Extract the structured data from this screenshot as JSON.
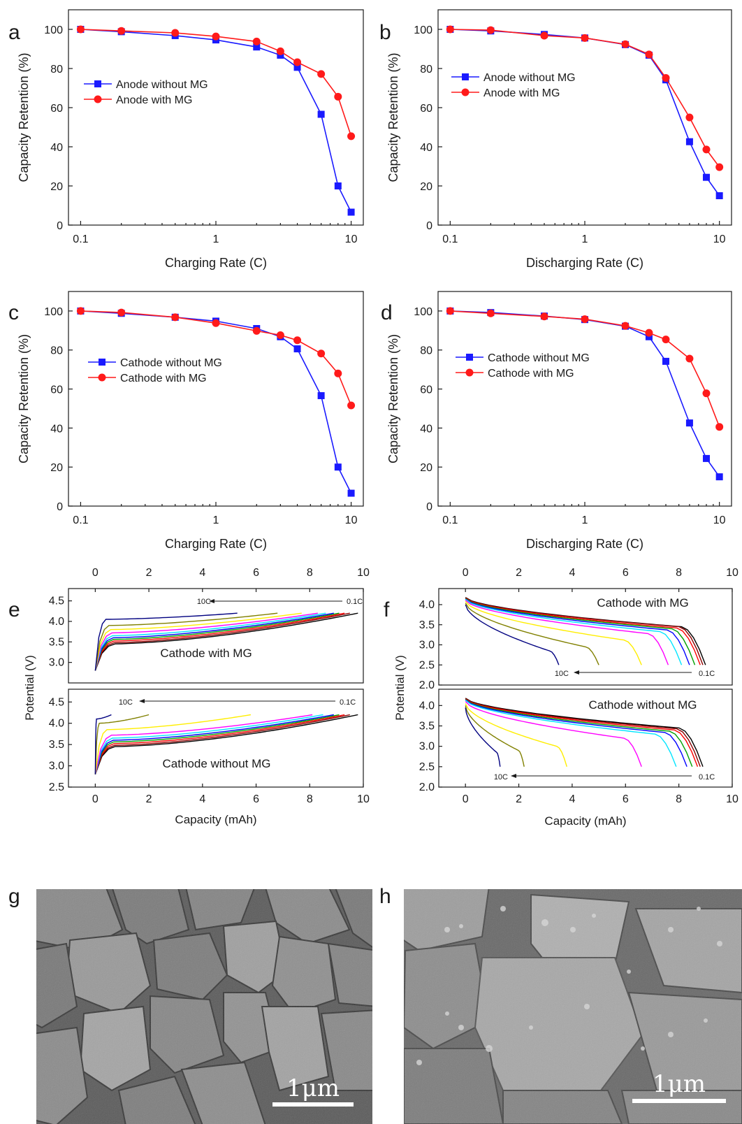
{
  "colors": {
    "blue": "#1a1aff",
    "red": "#ff1a1a",
    "curve_palette": [
      "#000000",
      "#8b0000",
      "#ff0000",
      "#00a000",
      "#0000ff",
      "#00e5ff",
      "#ff00ff",
      "#ffee00",
      "#808000",
      "#000080",
      "#800080"
    ]
  },
  "panel_letters": [
    "a",
    "b",
    "c",
    "d",
    "e",
    "f",
    "g",
    "h"
  ],
  "chart_data": [
    {
      "id": "a",
      "type": "line",
      "xlabel": "Charging Rate (C)",
      "ylabel": "Capacity Retention (%)",
      "xscale": "log",
      "xlim": [
        0.1,
        10
      ],
      "ylim": [
        0,
        110
      ],
      "xticks": [
        "0.1",
        "1",
        "10"
      ],
      "yticks": [
        0,
        20,
        40,
        60,
        80,
        100
      ],
      "legend": "upper-left",
      "x": [
        0.1,
        0.2,
        0.5,
        1,
        2,
        3,
        4,
        6,
        8,
        10
      ],
      "series": [
        {
          "name": "Anode without MG",
          "marker": "square",
          "color": "#1a1aff",
          "values": [
            100,
            98.8,
            96.8,
            94.6,
            91,
            86.8,
            80.6,
            56.6,
            20,
            6.6
          ]
        },
        {
          "name": "Anode with MG",
          "marker": "circle",
          "color": "#ff1a1a",
          "values": [
            100,
            99.2,
            98.2,
            96.4,
            93.8,
            88.8,
            83.2,
            77.2,
            65.6,
            45.4
          ]
        }
      ]
    },
    {
      "id": "b",
      "type": "line",
      "xlabel": "Discharging Rate (C)",
      "ylabel": "Capacity Retention (%)",
      "xscale": "log",
      "xlim": [
        0.1,
        10
      ],
      "ylim": [
        0,
        110
      ],
      "xticks": [
        "0.1",
        "1",
        "10"
      ],
      "yticks": [
        0,
        20,
        40,
        60,
        80,
        100
      ],
      "legend": "upper-left",
      "x": [
        0.1,
        0.2,
        0.5,
        1,
        2,
        3,
        4,
        6,
        8,
        10
      ],
      "series": [
        {
          "name": "Anode without MG",
          "marker": "square",
          "color": "#1a1aff",
          "values": [
            100,
            99.2,
            97.4,
            95.6,
            92.2,
            86.8,
            74.2,
            42.6,
            24.4,
            15
          ]
        },
        {
          "name": "Anode with MG",
          "marker": "circle",
          "color": "#ff1a1a",
          "values": [
            100,
            99.6,
            96.8,
            95.6,
            92.4,
            87.2,
            75.2,
            55,
            38.6,
            29.6
          ]
        }
      ]
    },
    {
      "id": "c",
      "type": "line",
      "xlabel": "Charging Rate (C)",
      "ylabel": "Capacity Retention (%)",
      "xscale": "log",
      "xlim": [
        0.1,
        10
      ],
      "ylim": [
        0,
        110
      ],
      "xticks": [
        "0.1",
        "1",
        "10"
      ],
      "yticks": [
        0,
        20,
        40,
        60,
        80,
        100
      ],
      "legend": "upper-left",
      "x": [
        0.1,
        0.2,
        0.5,
        1,
        2,
        3,
        4,
        6,
        8,
        10
      ],
      "series": [
        {
          "name": "Cathode without MG",
          "marker": "square",
          "color": "#1a1aff",
          "values": [
            100,
            98.8,
            96.8,
            94.8,
            91,
            86.8,
            80.6,
            56.6,
            20,
            6.6
          ]
        },
        {
          "name": "Cathode with MG",
          "marker": "circle",
          "color": "#ff1a1a",
          "values": [
            100,
            99.2,
            96.8,
            93.8,
            89.8,
            87.6,
            85,
            78.2,
            68,
            51.6
          ]
        }
      ]
    },
    {
      "id": "d",
      "type": "line",
      "xlabel": "Discharging Rate (C)",
      "ylabel": "Capacity Retention (%)",
      "xscale": "log",
      "xlim": [
        0.1,
        10
      ],
      "ylim": [
        0,
        110
      ],
      "xticks": [
        "0.1",
        "1",
        "10"
      ],
      "yticks": [
        0,
        20,
        40,
        60,
        80,
        100
      ],
      "legend": "upper-left",
      "x": [
        0.1,
        0.2,
        0.5,
        1,
        2,
        3,
        4,
        6,
        8,
        10
      ],
      "series": [
        {
          "name": "Cathode without MG",
          "marker": "square",
          "color": "#1a1aff",
          "values": [
            100,
            99.2,
            97.4,
            95.6,
            92.2,
            86.8,
            74.2,
            42.6,
            24.4,
            15
          ]
        },
        {
          "name": "Cathode with MG",
          "marker": "circle",
          "color": "#ff1a1a",
          "values": [
            100,
            98.8,
            97.2,
            95.8,
            92.4,
            88.8,
            85.4,
            75.6,
            57.8,
            40.6
          ]
        }
      ]
    },
    {
      "id": "e",
      "type": "line",
      "xlabel": "Capacity (mAh)",
      "ylabel": "Potential (V)",
      "xlim": [
        -1,
        10
      ],
      "xticks": [
        0,
        2,
        4,
        6,
        8,
        10
      ],
      "panels": [
        {
          "label": "Cathode with MG",
          "ylim": [
            2.5,
            4.8
          ],
          "yticks": [
            3.0,
            3.5,
            4.0,
            4.5
          ],
          "rate_high_label": "10C",
          "rate_low_label": "0.1C",
          "shape": "charge",
          "end_capacities": [
            9.8,
            9.5,
            9.3,
            9.1,
            8.9,
            8.6,
            8.3,
            7.7,
            6.8,
            5.3
          ],
          "start_potentials": [
            3.45,
            3.48,
            3.52,
            3.56,
            3.6,
            3.65,
            3.72,
            3.8,
            3.9,
            4.05
          ],
          "end_potential": 4.2
        },
        {
          "label": "Cathode without MG",
          "ylim": [
            2.5,
            4.8
          ],
          "yticks": [
            2.5,
            3.0,
            3.5,
            4.0,
            4.5
          ],
          "rate_high_label": "10C",
          "rate_low_label": "0.1C",
          "shape": "charge",
          "end_capacities": [
            9.8,
            9.5,
            9.3,
            9.1,
            8.9,
            8.5,
            8.1,
            5.8,
            2.0,
            0.6
          ],
          "start_potentials": [
            3.45,
            3.48,
            3.52,
            3.56,
            3.6,
            3.65,
            3.72,
            3.85,
            4.0,
            4.1
          ],
          "end_potential": 4.2
        }
      ]
    },
    {
      "id": "f",
      "type": "line",
      "xlabel": "Capacity (mAh)",
      "ylabel": "Potential (V)",
      "xlim": [
        -1,
        10
      ],
      "xticks": [
        0,
        2,
        4,
        6,
        8,
        10
      ],
      "panels": [
        {
          "label": "Cathode with MG",
          "ylim": [
            2.0,
            4.4
          ],
          "yticks": [
            2.0,
            2.5,
            3.0,
            3.5,
            4.0
          ],
          "rate_high_label": "10C",
          "rate_low_label": "0.1C",
          "shape": "discharge",
          "end_capacities": [
            9.0,
            8.9,
            8.8,
            8.6,
            8.4,
            8.1,
            7.6,
            6.6,
            5.0,
            3.5
          ],
          "start_potentials": [
            4.18,
            4.17,
            4.16,
            4.15,
            4.14,
            4.13,
            4.11,
            4.08,
            4.04,
            4.0
          ],
          "plateau_potentials": [
            3.45,
            3.45,
            3.42,
            3.4,
            3.37,
            3.33,
            3.28,
            3.12,
            2.95,
            2.85
          ],
          "end_potential": 2.5
        },
        {
          "label": "Cathode without MG",
          "ylim": [
            2.0,
            4.4
          ],
          "yticks": [
            2.0,
            2.5,
            3.0,
            3.5,
            4.0
          ],
          "rate_high_label": "10C",
          "rate_low_label": "0.1C",
          "shape": "discharge",
          "end_capacities": [
            8.9,
            8.8,
            8.7,
            8.5,
            8.3,
            7.9,
            6.6,
            3.8,
            2.2,
            1.3
          ],
          "start_potentials": [
            4.18,
            4.17,
            4.16,
            4.15,
            4.14,
            4.13,
            4.1,
            4.05,
            4.0,
            3.95
          ],
          "plateau_potentials": [
            3.45,
            3.43,
            3.4,
            3.37,
            3.34,
            3.3,
            3.2,
            3.0,
            2.9,
            2.85
          ],
          "end_potential": 2.5
        }
      ]
    }
  ],
  "sem_images": [
    {
      "id": "g",
      "scale_bar": "1μm"
    },
    {
      "id": "h",
      "scale_bar": "1μm"
    }
  ]
}
